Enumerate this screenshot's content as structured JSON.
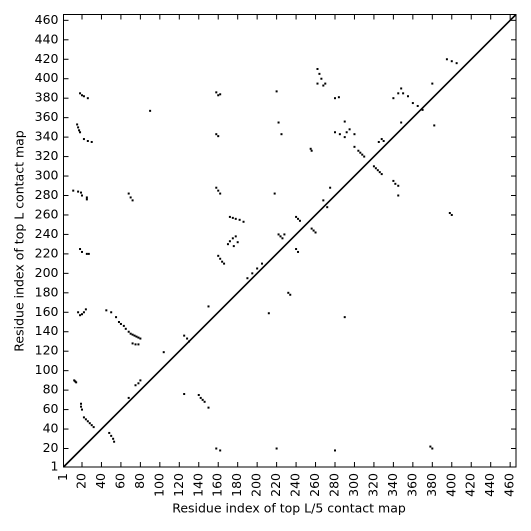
{
  "chart_data": {
    "type": "scatter",
    "x_label": "Residue index of top L/5 contact map",
    "y_label": "Residue index of top L contact map",
    "xlim": [
      1,
      466
    ],
    "ylim": [
      1,
      466
    ],
    "xticks": [
      1,
      20,
      40,
      60,
      80,
      100,
      120,
      140,
      160,
      180,
      200,
      220,
      240,
      260,
      280,
      300,
      320,
      340,
      360,
      380,
      400,
      420,
      440,
      460
    ],
    "yticks": [
      1,
      20,
      40,
      60,
      80,
      100,
      120,
      140,
      160,
      180,
      200,
      220,
      240,
      260,
      280,
      300,
      320,
      340,
      360,
      380,
      400,
      420,
      440,
      460
    ],
    "grid": false,
    "series": [
      {
        "color": "#000000",
        "x": [
          12,
          13,
          14,
          19,
          19,
          20,
          22,
          24,
          26,
          28,
          30,
          32,
          48,
          50,
          52,
          53,
          18,
          20,
          22,
          26,
          15,
          16,
          17,
          18,
          22,
          26,
          30,
          11,
          16,
          19,
          20,
          25,
          25,
          18,
          20,
          25,
          27,
          16,
          18,
          20,
          22,
          24,
          45,
          50,
          55,
          58,
          60,
          63,
          65,
          68,
          70,
          72,
          74,
          76,
          78,
          72,
          75,
          78,
          80,
          68,
          70,
          72,
          68,
          75,
          78,
          80,
          90,
          104,
          125,
          128,
          130,
          125,
          140,
          142,
          144,
          146,
          150,
          150,
          158,
          160,
          162,
          158,
          160,
          158,
          160,
          162,
          160,
          162,
          164,
          166,
          158,
          162,
          170,
          172,
          175,
          178,
          180,
          176,
          172,
          175,
          178,
          182,
          186,
          190,
          195,
          200,
          205,
          212,
          220,
          222,
          225,
          218,
          222,
          224,
          226,
          228,
          232,
          234,
          240,
          242,
          244,
          240,
          242,
          256,
          258,
          260,
          255,
          256,
          262,
          264,
          266,
          262,
          268,
          270,
          268,
          272,
          275,
          280,
          285,
          290,
          292,
          295,
          290,
          300,
          280,
          284,
          300,
          304,
          306,
          308,
          310,
          280,
          290,
          320,
          322,
          324,
          326,
          328,
          325,
          328,
          330,
          340,
          345,
          348,
          350,
          355,
          348,
          340,
          342,
          345,
          345,
          360,
          365,
          370,
          380,
          382,
          395,
          400,
          405,
          398,
          400,
          378,
          380,
          220
        ],
        "y": [
          90,
          89,
          88,
          66,
          63,
          60,
          52,
          50,
          48,
          46,
          44,
          42,
          36,
          33,
          30,
          27,
          385,
          383,
          382,
          380,
          353,
          350,
          347,
          345,
          338,
          336,
          335,
          285,
          284,
          283,
          280,
          278,
          276,
          225,
          222,
          220,
          220,
          160,
          157,
          158,
          160,
          163,
          162,
          160,
          155,
          150,
          148,
          146,
          143,
          140,
          138,
          137,
          136,
          135,
          134,
          128,
          127,
          127,
          133,
          282,
          278,
          275,
          72,
          85,
          87,
          90,
          367,
          119,
          136,
          133,
          130,
          76,
          75,
          72,
          70,
          68,
          62,
          166,
          386,
          383,
          384,
          343,
          341,
          288,
          285,
          282,
          218,
          215,
          212,
          210,
          20,
          18,
          230,
          233,
          236,
          238,
          232,
          228,
          258,
          257,
          256,
          255,
          253,
          195,
          200,
          205,
          210,
          159,
          387,
          355,
          343,
          282,
          240,
          238,
          236,
          240,
          180,
          178,
          258,
          256,
          254,
          225,
          222,
          246,
          244,
          242,
          328,
          326,
          410,
          405,
          400,
          395,
          393,
          395,
          275,
          268,
          288,
          345,
          343,
          340,
          345,
          348,
          356,
          343,
          380,
          381,
          330,
          326,
          324,
          322,
          320,
          18,
          155,
          310,
          308,
          306,
          304,
          302,
          335,
          338,
          336,
          380,
          385,
          390,
          385,
          382,
          355,
          295,
          292,
          290,
          280,
          375,
          372,
          368,
          395,
          352,
          420,
          418,
          416,
          262,
          260,
          22,
          20,
          20
        ]
      }
    ]
  }
}
